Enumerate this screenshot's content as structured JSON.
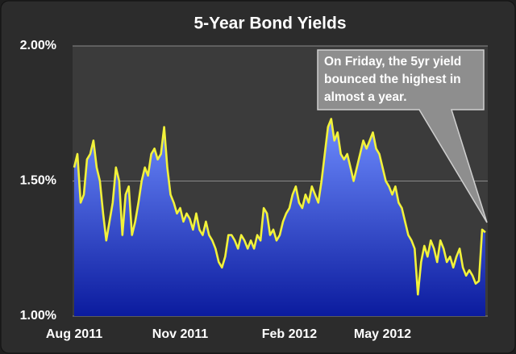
{
  "chart_data": {
    "type": "area",
    "title": "5-Year Bond Yields",
    "annotation": [
      "On Friday, the 5yr yield",
      "bounced the highest in",
      "almost a year."
    ],
    "categories": [
      "Aug 2011",
      null,
      null,
      null,
      null,
      null,
      null,
      null,
      null,
      null,
      null,
      null,
      null,
      null,
      null,
      null,
      null,
      null,
      null,
      null,
      null,
      null,
      null,
      null,
      null,
      null,
      null,
      null,
      null,
      null,
      null,
      null,
      null,
      "Nov 2011",
      null,
      null,
      null,
      null,
      null,
      null,
      null,
      null,
      null,
      null,
      null,
      null,
      null,
      null,
      null,
      null,
      null,
      null,
      null,
      null,
      null,
      null,
      null,
      null,
      null,
      null,
      null,
      null,
      null,
      null,
      null,
      null,
      null,
      "Feb 2012",
      null,
      null,
      null,
      null,
      null,
      null,
      null,
      null,
      null,
      null,
      null,
      null,
      null,
      null,
      null,
      null,
      null,
      null,
      null,
      null,
      null,
      null,
      null,
      null,
      null,
      null,
      null,
      null,
      "May 2012",
      null,
      null,
      null,
      null,
      null,
      null,
      null,
      null,
      null,
      null,
      null,
      null,
      null,
      null,
      null,
      null,
      null,
      null,
      null,
      null,
      null,
      null,
      null,
      null,
      null,
      null,
      null,
      null,
      null,
      null,
      null,
      null
    ],
    "values": [
      1.55,
      1.6,
      1.42,
      1.45,
      1.58,
      1.6,
      1.65,
      1.55,
      1.5,
      1.38,
      1.28,
      1.35,
      1.42,
      1.55,
      1.5,
      1.3,
      1.45,
      1.48,
      1.3,
      1.35,
      1.42,
      1.5,
      1.55,
      1.52,
      1.6,
      1.62,
      1.58,
      1.6,
      1.7,
      1.55,
      1.45,
      1.42,
      1.38,
      1.4,
      1.35,
      1.38,
      1.36,
      1.32,
      1.38,
      1.32,
      1.3,
      1.35,
      1.3,
      1.28,
      1.25,
      1.2,
      1.18,
      1.22,
      1.3,
      1.3,
      1.28,
      1.25,
      1.3,
      1.28,
      1.25,
      1.28,
      1.25,
      1.3,
      1.28,
      1.4,
      1.38,
      1.3,
      1.32,
      1.28,
      1.3,
      1.35,
      1.38,
      1.4,
      1.45,
      1.48,
      1.42,
      1.4,
      1.45,
      1.42,
      1.48,
      1.45,
      1.42,
      1.5,
      1.6,
      1.7,
      1.73,
      1.65,
      1.68,
      1.6,
      1.58,
      1.6,
      1.55,
      1.5,
      1.55,
      1.6,
      1.65,
      1.62,
      1.65,
      1.68,
      1.62,
      1.6,
      1.55,
      1.5,
      1.48,
      1.45,
      1.48,
      1.42,
      1.4,
      1.35,
      1.3,
      1.28,
      1.25,
      1.08,
      1.2,
      1.26,
      1.22,
      1.28,
      1.25,
      1.2,
      1.28,
      1.25,
      1.2,
      1.22,
      1.18,
      1.22,
      1.25,
      1.18,
      1.15,
      1.17,
      1.15,
      1.12,
      1.13,
      1.32,
      1.31
    ],
    "color": "#f2f23a",
    "fill_top": "#6f8dff",
    "fill_bottom": "#0b1b9e",
    "ylim": [
      1.0,
      2.0
    ],
    "yticks": [
      {
        "value": 1.0,
        "label": "1.00%"
      },
      {
        "value": 1.5,
        "label": "1.50%"
      },
      {
        "value": 2.0,
        "label": "2.00%"
      }
    ],
    "grid": true
  }
}
